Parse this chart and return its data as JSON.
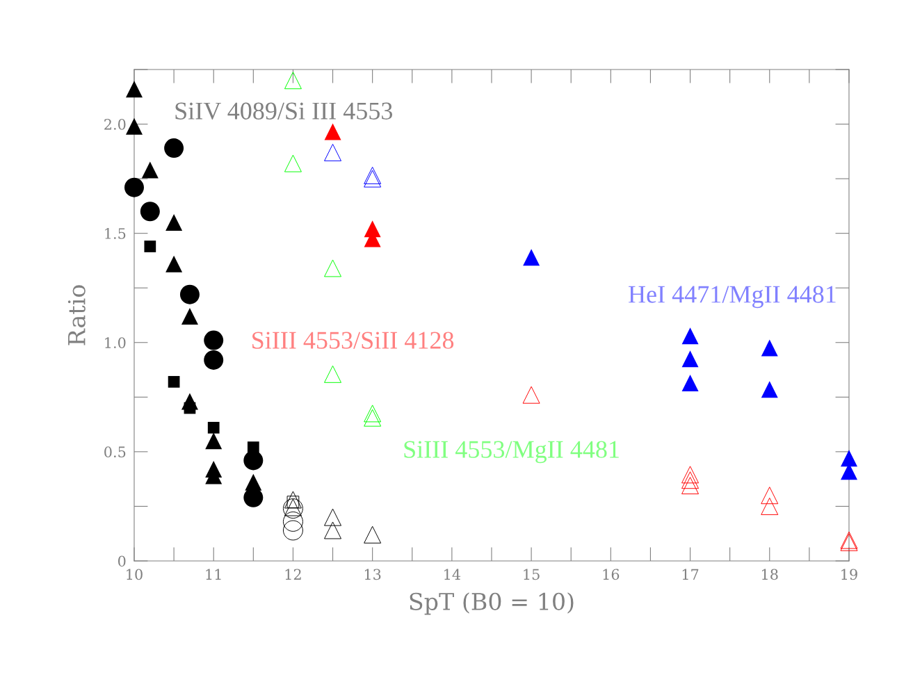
{
  "chart_data": {
    "type": "scatter",
    "xlabel": "SpT (B0 = 10)",
    "ylabel": "Ratio",
    "xlim": [
      10,
      19
    ],
    "ylim": [
      0,
      2.25
    ],
    "xticks": [
      10,
      11,
      12,
      13,
      14,
      15,
      16,
      17,
      18,
      19
    ],
    "yticks": [
      0,
      0.5,
      {
        "value": 1.0,
        "label": "1.0"
      },
      1.5,
      {
        "value": 2.0,
        "label": "2.0"
      }
    ],
    "grid": false,
    "legend": false,
    "annotations": [
      "SiIV 4089/Si III 4553",
      "HeI 4471/MgII 4481",
      "SiIII 4553/SiII 4128",
      "SiIII 4553/MgII 4481"
    ],
    "series": [
      {
        "color": "#000000",
        "marker": "triangle",
        "x": [
          10,
          10,
          10.2,
          10.5,
          10.5,
          10.7,
          10.7,
          11,
          11,
          11,
          11.5
        ],
        "values": [
          2.16,
          1.99,
          1.79,
          1.55,
          1.36,
          1.12,
          0.73,
          0.55,
          0.42,
          0.39,
          0.36
        ]
      },
      {
        "color": "#000000",
        "marker": "circle",
        "x": [
          10,
          10.2,
          10.5,
          10.7,
          11,
          11,
          11.5,
          11.5
        ],
        "values": [
          1.71,
          1.6,
          1.89,
          1.22,
          1.01,
          0.92,
          0.46,
          0.29
        ]
      },
      {
        "color": "#000000",
        "marker": "square",
        "x": [
          10.2,
          10.5,
          10.7,
          11,
          11.5
        ],
        "values": [
          1.44,
          0.82,
          0.7,
          0.61,
          0.52
        ]
      },
      {
        "color": "#000000",
        "marker": "triangle",
        "x": [
          12,
          12,
          12.5,
          12.5,
          13
        ],
        "values": [
          0.28,
          0.245,
          0.2,
          0.14,
          0.12
        ]
      },
      {
        "color": "#000000",
        "marker": "square",
        "x": [
          12
        ],
        "values": [
          0.27
        ]
      },
      {
        "color": "#000000",
        "marker": "circle",
        "x": [
          12,
          12,
          12
        ],
        "values": [
          0.24,
          0.18,
          0.14
        ]
      },
      {
        "color": "#00ff00",
        "marker": "triangle",
        "x": [
          12,
          12,
          12.5,
          12.5,
          13,
          13
        ],
        "values": [
          2.2,
          1.82,
          1.34,
          0.855,
          0.675,
          0.655
        ]
      },
      {
        "color": "#0000ff",
        "marker": "triangle",
        "x": [
          12.5,
          13,
          13
        ],
        "values": [
          1.87,
          1.765,
          1.75
        ]
      },
      {
        "color": "#ff0000",
        "marker": "triangle",
        "x": [
          12.5,
          13,
          13
        ],
        "values": [
          1.965,
          1.52,
          1.475
        ]
      },
      {
        "color": "#0000ff",
        "marker": "triangle",
        "x": [
          15,
          17,
          17,
          17,
          18,
          18,
          19,
          19
        ],
        "values": [
          1.39,
          1.03,
          0.925,
          0.815,
          0.975,
          0.785,
          0.47,
          0.41
        ]
      },
      {
        "color": "#ff0000",
        "marker": "triangle",
        "x": [
          15,
          17,
          17,
          17,
          18,
          18,
          19,
          19
        ],
        "values": [
          0.76,
          0.395,
          0.37,
          0.345,
          0.3,
          0.25,
          0.095,
          0.085
        ]
      }
    ]
  }
}
